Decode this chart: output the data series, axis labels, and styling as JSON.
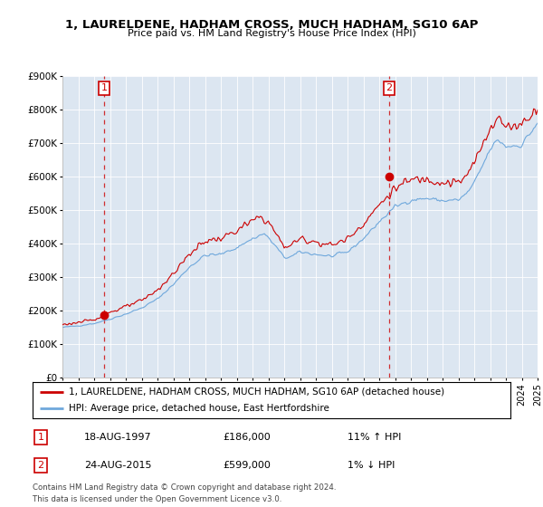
{
  "title": "1, LAURELDENE, HADHAM CROSS, MUCH HADHAM, SG10 6AP",
  "subtitle": "Price paid vs. HM Land Registry's House Price Index (HPI)",
  "ylim": [
    0,
    900000
  ],
  "yticks": [
    0,
    100000,
    200000,
    300000,
    400000,
    500000,
    600000,
    700000,
    800000,
    900000
  ],
  "ytick_labels": [
    "£0",
    "£100K",
    "£200K",
    "£300K",
    "£400K",
    "£500K",
    "£600K",
    "£700K",
    "£800K",
    "£900K"
  ],
  "x_start_year": 1995,
  "x_end_year": 2025,
  "hpi_color": "#6fa8dc",
  "price_color": "#cc0000",
  "background_color": "#ffffff",
  "chart_bg_color": "#dce6f1",
  "grid_color": "#ffffff",
  "sale1_year": 1997.622,
  "sale1_price": 186000,
  "sale1_label": "1",
  "sale1_date": "18-AUG-1997",
  "sale1_hpi_pct": "11% ↑ HPI",
  "sale2_year": 2015.622,
  "sale2_price": 599000,
  "sale2_label": "2",
  "sale2_date": "24-AUG-2015",
  "sale2_hpi_pct": "1% ↓ HPI",
  "legend_line1": "1, LAURELDENE, HADHAM CROSS, MUCH HADHAM, SG10 6AP (detached house)",
  "legend_line2": "HPI: Average price, detached house, East Hertfordshire",
  "footer1": "Contains HM Land Registry data © Crown copyright and database right 2024.",
  "footer2": "This data is licensed under the Open Government Licence v3.0."
}
